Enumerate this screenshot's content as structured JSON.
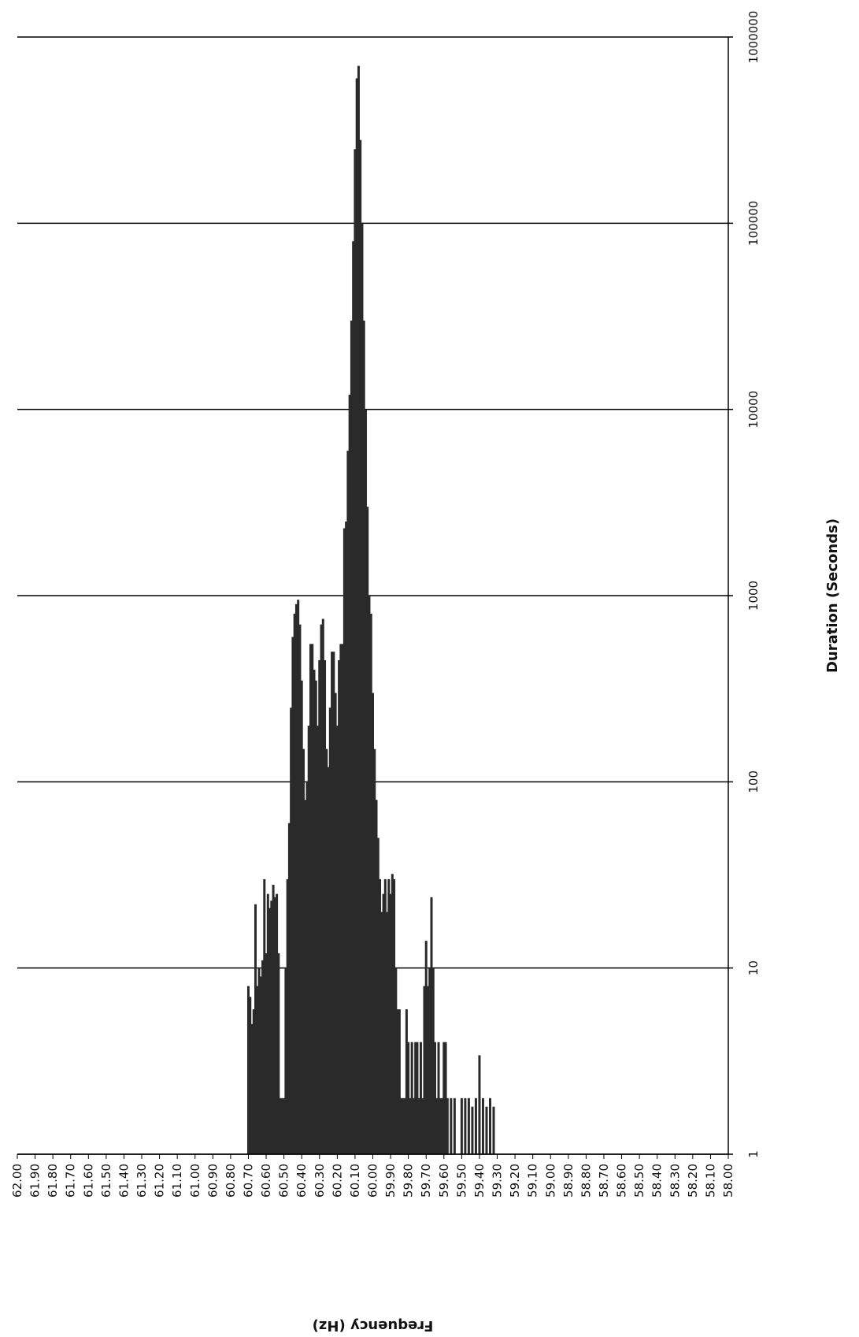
{
  "chart_data": {
    "type": "bar",
    "orientation": "rotated-90",
    "xlabel": "Frequency (Hz)",
    "ylabel": "Duration (Seconds)",
    "xlim": [
      58.0,
      62.0
    ],
    "x_axis_reversed": true,
    "ylim": [
      1,
      1000000
    ],
    "y_scale": "log",
    "grid": "major y gridlines",
    "x_tick_labels": [
      "62.00",
      "61.90",
      "61.80",
      "61.70",
      "61.60",
      "61.50",
      "61.40",
      "61.30",
      "61.20",
      "61.10",
      "61.00",
      "60.90",
      "60.80",
      "60.70",
      "60.60",
      "60.50",
      "60.40",
      "60.30",
      "60.20",
      "60.10",
      "60.00",
      "59.90",
      "59.80",
      "59.70",
      "59.60",
      "59.50",
      "59.40",
      "59.30",
      "59.20",
      "59.10",
      "59.00",
      "58.90",
      "58.80",
      "58.70",
      "58.60",
      "58.50",
      "58.40",
      "58.30",
      "58.20",
      "58.10",
      "58.00"
    ],
    "y_tick_labels": [
      "1",
      "10",
      "100",
      "1000",
      "10000",
      "100000",
      "1000000"
    ],
    "y_ticks": [
      1,
      10,
      100,
      1000,
      10000,
      100000,
      1000000
    ],
    "points": [
      {
        "hz": 60.7,
        "s": 8
      },
      {
        "hz": 60.69,
        "s": 7
      },
      {
        "hz": 60.68,
        "s": 5
      },
      {
        "hz": 60.67,
        "s": 6
      },
      {
        "hz": 60.66,
        "s": 22
      },
      {
        "hz": 60.65,
        "s": 8
      },
      {
        "hz": 60.64,
        "s": 10
      },
      {
        "hz": 60.63,
        "s": 9
      },
      {
        "hz": 60.62,
        "s": 11
      },
      {
        "hz": 60.61,
        "s": 30
      },
      {
        "hz": 60.6,
        "s": 12
      },
      {
        "hz": 60.59,
        "s": 25
      },
      {
        "hz": 60.58,
        "s": 21
      },
      {
        "hz": 60.57,
        "s": 23
      },
      {
        "hz": 60.56,
        "s": 28
      },
      {
        "hz": 60.55,
        "s": 24
      },
      {
        "hz": 60.54,
        "s": 25
      },
      {
        "hz": 60.53,
        "s": 12
      },
      {
        "hz": 60.52,
        "s": 2
      },
      {
        "hz": 60.51,
        "s": 2
      },
      {
        "hz": 60.5,
        "s": 2
      },
      {
        "hz": 60.49,
        "s": 10
      },
      {
        "hz": 60.48,
        "s": 30
      },
      {
        "hz": 60.47,
        "s": 60
      },
      {
        "hz": 60.46,
        "s": 250
      },
      {
        "hz": 60.45,
        "s": 600
      },
      {
        "hz": 60.44,
        "s": 800
      },
      {
        "hz": 60.43,
        "s": 900
      },
      {
        "hz": 60.42,
        "s": 950
      },
      {
        "hz": 60.41,
        "s": 700
      },
      {
        "hz": 60.4,
        "s": 350
      },
      {
        "hz": 60.39,
        "s": 150
      },
      {
        "hz": 60.38,
        "s": 80
      },
      {
        "hz": 60.37,
        "s": 100
      },
      {
        "hz": 60.36,
        "s": 200
      },
      {
        "hz": 60.35,
        "s": 550
      },
      {
        "hz": 60.34,
        "s": 550
      },
      {
        "hz": 60.33,
        "s": 400
      },
      {
        "hz": 60.32,
        "s": 350
      },
      {
        "hz": 60.31,
        "s": 200
      },
      {
        "hz": 60.3,
        "s": 450
      },
      {
        "hz": 60.29,
        "s": 700
      },
      {
        "hz": 60.28,
        "s": 750
      },
      {
        "hz": 60.27,
        "s": 450
      },
      {
        "hz": 60.26,
        "s": 150
      },
      {
        "hz": 60.25,
        "s": 120
      },
      {
        "hz": 60.24,
        "s": 250
      },
      {
        "hz": 60.23,
        "s": 500
      },
      {
        "hz": 60.22,
        "s": 500
      },
      {
        "hz": 60.21,
        "s": 300
      },
      {
        "hz": 60.2,
        "s": 200
      },
      {
        "hz": 60.19,
        "s": 450
      },
      {
        "hz": 60.18,
        "s": 550
      },
      {
        "hz": 60.17,
        "s": 550
      },
      {
        "hz": 60.16,
        "s": 2300
      },
      {
        "hz": 60.15,
        "s": 2500
      },
      {
        "hz": 60.14,
        "s": 6000
      },
      {
        "hz": 60.13,
        "s": 12000
      },
      {
        "hz": 60.12,
        "s": 30000
      },
      {
        "hz": 60.11,
        "s": 80000
      },
      {
        "hz": 60.1,
        "s": 250000
      },
      {
        "hz": 60.09,
        "s": 600000
      },
      {
        "hz": 60.08,
        "s": 700000
      },
      {
        "hz": 60.07,
        "s": 280000
      },
      {
        "hz": 60.06,
        "s": 100000
      },
      {
        "hz": 60.05,
        "s": 30000
      },
      {
        "hz": 60.04,
        "s": 10000
      },
      {
        "hz": 60.03,
        "s": 3000
      },
      {
        "hz": 60.02,
        "s": 1000
      },
      {
        "hz": 60.01,
        "s": 800
      },
      {
        "hz": 60.0,
        "s": 300
      },
      {
        "hz": 59.99,
        "s": 150
      },
      {
        "hz": 59.98,
        "s": 80
      },
      {
        "hz": 59.97,
        "s": 50
      },
      {
        "hz": 59.96,
        "s": 30
      },
      {
        "hz": 59.95,
        "s": 20
      },
      {
        "hz": 59.94,
        "s": 25
      },
      {
        "hz": 59.93,
        "s": 30
      },
      {
        "hz": 59.92,
        "s": 20
      },
      {
        "hz": 59.91,
        "s": 30
      },
      {
        "hz": 59.9,
        "s": 25
      },
      {
        "hz": 59.89,
        "s": 32
      },
      {
        "hz": 59.88,
        "s": 30
      },
      {
        "hz": 59.87,
        "s": 10
      },
      {
        "hz": 59.86,
        "s": 6
      },
      {
        "hz": 59.85,
        "s": 6
      },
      {
        "hz": 59.84,
        "s": 2
      },
      {
        "hz": 59.83,
        "s": 2
      },
      {
        "hz": 59.82,
        "s": 2
      },
      {
        "hz": 59.81,
        "s": 6
      },
      {
        "hz": 59.8,
        "s": 4
      },
      {
        "hz": 59.79,
        "s": 2
      },
      {
        "hz": 59.78,
        "s": 4
      },
      {
        "hz": 59.77,
        "s": 2
      },
      {
        "hz": 59.76,
        "s": 4
      },
      {
        "hz": 59.75,
        "s": 4
      },
      {
        "hz": 59.74,
        "s": 2
      },
      {
        "hz": 59.73,
        "s": 4
      },
      {
        "hz": 59.72,
        "s": 2
      },
      {
        "hz": 59.71,
        "s": 8
      },
      {
        "hz": 59.7,
        "s": 14
      },
      {
        "hz": 59.69,
        "s": 8
      },
      {
        "hz": 59.68,
        "s": 10
      },
      {
        "hz": 59.67,
        "s": 24
      },
      {
        "hz": 59.66,
        "s": 10
      },
      {
        "hz": 59.65,
        "s": 4
      },
      {
        "hz": 59.64,
        "s": 2
      },
      {
        "hz": 59.63,
        "s": 4
      },
      {
        "hz": 59.62,
        "s": 2
      },
      {
        "hz": 59.61,
        "s": 2
      },
      {
        "hz": 59.6,
        "s": 4
      },
      {
        "hz": 59.59,
        "s": 4
      },
      {
        "hz": 59.58,
        "s": 2
      },
      {
        "hz": 59.56,
        "s": 2
      },
      {
        "hz": 59.54,
        "s": 2
      },
      {
        "hz": 59.5,
        "s": 2
      },
      {
        "hz": 59.48,
        "s": 2
      },
      {
        "hz": 59.46,
        "s": 2
      },
      {
        "hz": 59.44,
        "s": 1.8
      },
      {
        "hz": 59.42,
        "s": 2
      },
      {
        "hz": 59.4,
        "s": 3.4
      },
      {
        "hz": 59.38,
        "s": 2
      },
      {
        "hz": 59.36,
        "s": 1.8
      },
      {
        "hz": 59.34,
        "s": 2
      },
      {
        "hz": 59.32,
        "s": 1.8
      }
    ]
  }
}
